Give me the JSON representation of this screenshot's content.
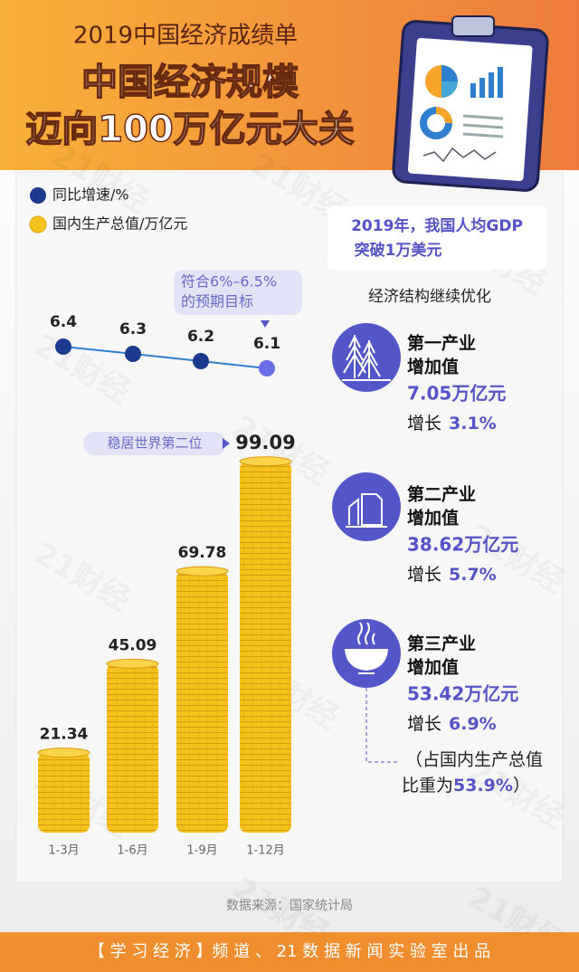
{
  "header": {
    "kicker": "2019中国经济成绩单",
    "title_line1": "中国经济规模",
    "title_line2": "迈向100万亿元大关"
  },
  "chart_data": [
    {
      "type": "line",
      "series": [
        {
          "name": "同比增速/%",
          "color": "#1c3a8e",
          "highlight_color": "#6a6de8",
          "values": [
            6.4,
            6.3,
            6.2,
            6.1
          ]
        }
      ],
      "annotation": [
        "符合6%–6.5%",
        "的预期目标"
      ]
    },
    {
      "type": "bar",
      "categories": [
        "1-3月",
        "1-6月",
        "1-9月",
        "1-12月"
      ],
      "series": [
        {
          "name": "国内生产总值/万亿元",
          "color": "#f6c21c",
          "values": [
            21.34,
            45.09,
            69.78,
            99.09
          ]
        }
      ],
      "annotation": "稳居世界第二位"
    }
  ],
  "side": {
    "gdp_note": [
      "2019年，我国人均GDP",
      "突破1万美元"
    ],
    "subtitle": "经济结构继续优化",
    "industries": [
      {
        "name": "第一产业",
        "label": "增加值",
        "value": "7.05万亿元",
        "growth_label": "增长",
        "growth": "3.1%"
      },
      {
        "name": "第二产业",
        "label": "增加值",
        "value": "38.62万亿元",
        "growth_label": "增长",
        "growth": "5.7%"
      },
      {
        "name": "第三产业",
        "label": "增加值",
        "value": "53.42万亿元",
        "growth_label": "增长",
        "growth": "6.9%"
      }
    ],
    "share": {
      "prefix": "（占国内生产总值",
      "middle": "比重为",
      "value": "53.9%",
      "suffix": "）"
    }
  },
  "watermark": "21财经",
  "footer": {
    "source": "数据来源：国家统计局",
    "credit": "【 学 习 经 济 】频 道 、 21 数 据 新 闻 实 验 室 出 品"
  }
}
